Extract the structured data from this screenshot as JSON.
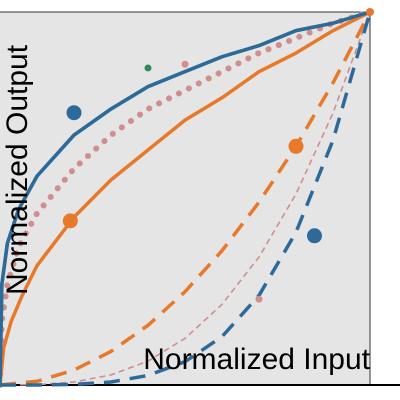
{
  "chart_data": {
    "type": "line",
    "title": "",
    "xlabel": "Normalized Input",
    "ylabel": "Normalized Output",
    "xlim": [
      0,
      1
    ],
    "ylim": [
      0,
      1
    ],
    "grid": false,
    "legend": "none",
    "background_color": "#e5e5e5",
    "series": [
      {
        "line_style": "solid",
        "color": "#2d6a9a",
        "curve": "y = x^0.25",
        "x": [
          0,
          0.005,
          0.02,
          0.05,
          0.1,
          0.2,
          0.3,
          0.4,
          0.5,
          0.6,
          0.7,
          0.8,
          0.9,
          1.0
        ],
        "y": [
          0,
          0.27,
          0.38,
          0.47,
          0.56,
          0.67,
          0.74,
          0.8,
          0.84,
          0.88,
          0.91,
          0.95,
          0.97,
          1.0
        ],
        "marker": {
          "x": 0.2,
          "y": 0.73
        }
      },
      {
        "line_style": "solid",
        "color": "#2e8b57",
        "curve": "y = x^0.25 (overlapping)",
        "x": [
          0,
          0.005,
          0.02,
          0.05,
          0.1,
          0.2,
          0.3,
          0.4,
          0.5,
          0.6,
          0.7,
          0.8,
          0.9,
          1.0
        ],
        "y": [
          0,
          0.27,
          0.38,
          0.47,
          0.56,
          0.67,
          0.74,
          0.8,
          0.84,
          0.88,
          0.91,
          0.95,
          0.97,
          1.0
        ],
        "marker": {
          "x": 0.4,
          "y": 0.85
        }
      },
      {
        "line_style": "dotted",
        "color": "#d08e8e",
        "curve": "y = x^0.33",
        "x": [
          0,
          0.005,
          0.02,
          0.05,
          0.1,
          0.2,
          0.3,
          0.4,
          0.5,
          0.6,
          0.7,
          0.8,
          0.9,
          1.0
        ],
        "y": [
          0,
          0.17,
          0.27,
          0.37,
          0.46,
          0.58,
          0.67,
          0.74,
          0.79,
          0.84,
          0.89,
          0.93,
          0.97,
          1.0
        ],
        "marker": {
          "x": 0.5,
          "y": 0.86
        }
      },
      {
        "line_style": "solid",
        "color": "#e8782a",
        "curve": "y = x^0.5",
        "x": [
          0,
          0.01,
          0.03,
          0.06,
          0.1,
          0.2,
          0.3,
          0.4,
          0.5,
          0.6,
          0.7,
          0.8,
          0.9,
          1.0
        ],
        "y": [
          0,
          0.1,
          0.17,
          0.24,
          0.32,
          0.45,
          0.55,
          0.63,
          0.71,
          0.77,
          0.84,
          0.89,
          0.95,
          1.0
        ],
        "marker": {
          "x": 0.19,
          "y": 0.44
        }
      },
      {
        "line_style": "dashed",
        "color": "#e8782a",
        "curve": "y = x^2",
        "x": [
          0,
          0.1,
          0.2,
          0.3,
          0.4,
          0.5,
          0.6,
          0.7,
          0.8,
          0.9,
          1.0
        ],
        "y": [
          0,
          0.01,
          0.04,
          0.09,
          0.16,
          0.25,
          0.36,
          0.49,
          0.64,
          0.81,
          1.0
        ],
        "marker": {
          "x": 0.8,
          "y": 0.64
        }
      },
      {
        "line_style": "dashed",
        "color": "#d08e8e",
        "curve": "y = x^3",
        "x": [
          0,
          0.1,
          0.2,
          0.3,
          0.4,
          0.5,
          0.6,
          0.7,
          0.8,
          0.9,
          1.0
        ],
        "y": [
          0,
          0.001,
          0.008,
          0.027,
          0.064,
          0.125,
          0.216,
          0.343,
          0.512,
          0.729,
          1.0
        ],
        "marker": {
          "x": 0.7,
          "y": 0.23
        }
      },
      {
        "line_style": "dashed",
        "color": "#2d6a9a",
        "curve": "y = x^4",
        "x": [
          0,
          0.1,
          0.2,
          0.3,
          0.4,
          0.5,
          0.6,
          0.7,
          0.8,
          0.9,
          1.0
        ],
        "y": [
          0,
          0.0001,
          0.0016,
          0.0081,
          0.0256,
          0.0625,
          0.1296,
          0.2401,
          0.4096,
          0.6561,
          1.0
        ],
        "marker": {
          "x": 0.85,
          "y": 0.4
        }
      }
    ]
  }
}
